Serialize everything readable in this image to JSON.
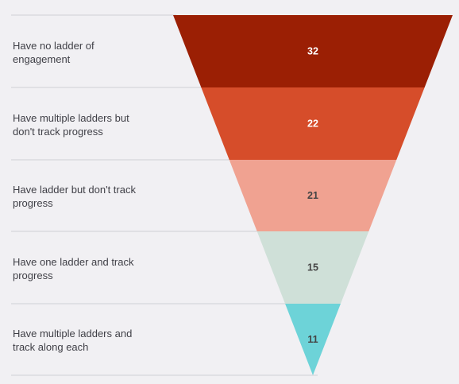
{
  "chart_data": {
    "type": "funnel",
    "categories": [
      "Have no ladder of engagement",
      "Have multiple ladders but don't track progress",
      "Have ladder but don't track progress",
      "Have one ladder and track progress",
      "Have multiple ladders and track along each"
    ],
    "label_lines": [
      [
        "Have no ladder of",
        "engagement"
      ],
      [
        "Have multiple ladders but",
        "don't track progress"
      ],
      [
        "Have ladder but don't track",
        "progress"
      ],
      [
        "Have one ladder and track",
        "progress"
      ],
      [
        "Have multiple ladders and",
        "track along each"
      ]
    ],
    "values": [
      32,
      22,
      21,
      15,
      11
    ],
    "colors": [
      "#9b1f04",
      "#d64d2a",
      "#f0a291",
      "#cfe0d8",
      "#6dd3d8"
    ],
    "value_text_colors": [
      "#ffffff",
      "#ffffff",
      "#444444",
      "#444444",
      "#444444"
    ],
    "grid": "horizontal separators between rows"
  }
}
